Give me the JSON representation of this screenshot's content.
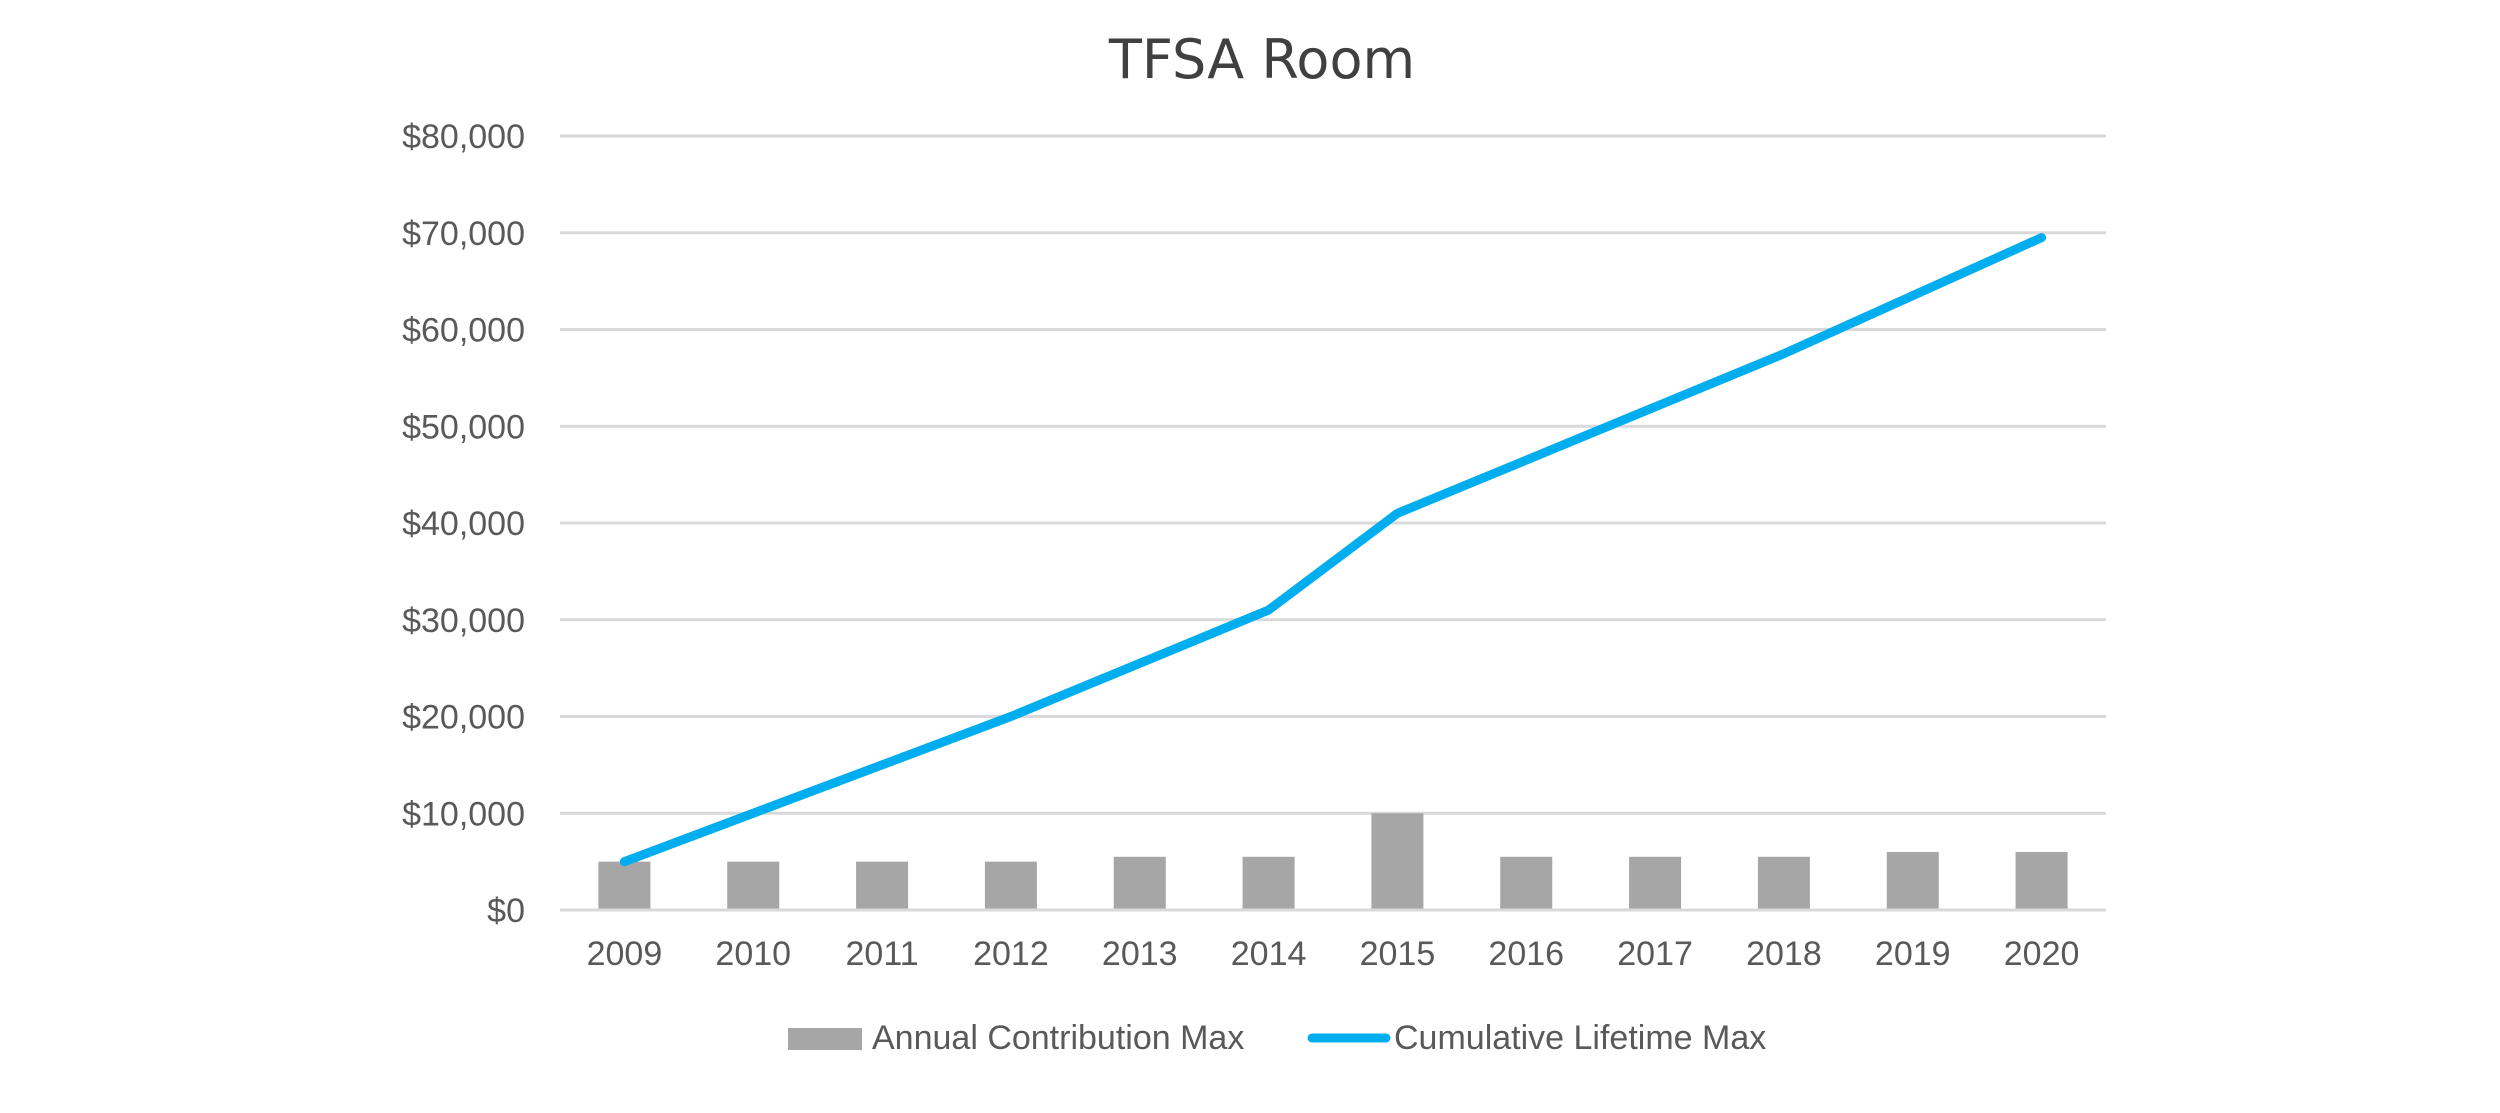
{
  "chart_data": {
    "type": "bar",
    "title": "TFSA Room",
    "xlabel": "",
    "ylabel": "",
    "categories": [
      "2009",
      "2010",
      "2011",
      "2012",
      "2013",
      "2014",
      "2015",
      "2016",
      "2017",
      "2018",
      "2019",
      "2020"
    ],
    "ylim": [
      0,
      80000
    ],
    "y_ticks": [
      0,
      10000,
      20000,
      30000,
      40000,
      50000,
      60000,
      70000,
      80000
    ],
    "y_tick_labels": [
      "$0",
      "$10,000",
      "$20,000",
      "$30,000",
      "$40,000",
      "$50,000",
      "$60,000",
      "$70,000",
      "$80,000"
    ],
    "grid": true,
    "legend_position": "bottom",
    "series": [
      {
        "name": "Annual Contribution Max",
        "type": "bar",
        "color": "#a6a6a6",
        "values": [
          5000,
          5000,
          5000,
          5000,
          5500,
          5500,
          10000,
          5500,
          5500,
          5500,
          6000,
          6000
        ]
      },
      {
        "name": "Cumulative Lifetime Max",
        "type": "line",
        "color": "#00aeef",
        "values": [
          5000,
          10000,
          15000,
          20000,
          25500,
          31000,
          41000,
          46500,
          52000,
          57500,
          63500,
          69500
        ]
      }
    ]
  }
}
